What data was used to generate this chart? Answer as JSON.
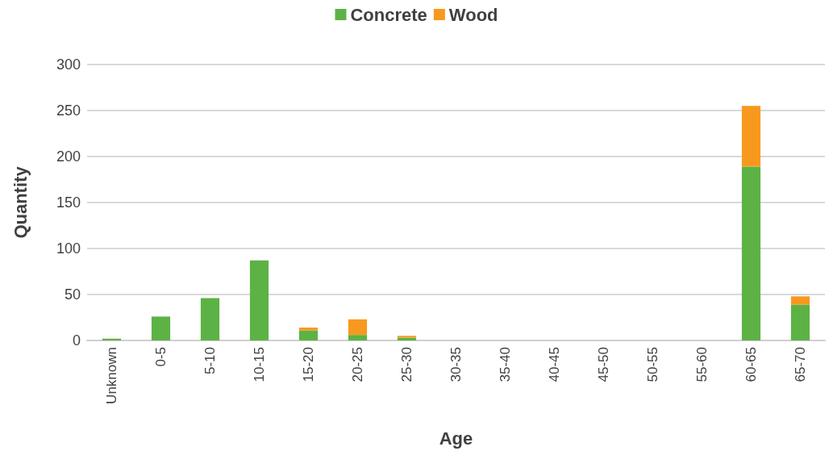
{
  "chart_data": {
    "type": "bar",
    "stacked": true,
    "xlabel": "Age",
    "ylabel": "Quantity",
    "categories": [
      "Unknown",
      "0-5",
      "5-10",
      "10-15",
      "15-20",
      "20-25",
      "25-30",
      "30-35",
      "35-40",
      "40-45",
      "45-50",
      "50-55",
      "55-60",
      "60-65",
      "65-70"
    ],
    "series": [
      {
        "name": "Concrete",
        "color": "#5db245",
        "values": [
          2,
          26,
          46,
          87,
          11,
          6,
          3,
          0,
          0,
          0,
          0,
          0,
          0,
          189,
          39
        ]
      },
      {
        "name": "Wood",
        "color": "#f7991f",
        "values": [
          0,
          0,
          0,
          0,
          3,
          17,
          2,
          0,
          0,
          0,
          0,
          0,
          0,
          66,
          9
        ]
      }
    ],
    "ylim": [
      0,
      300
    ],
    "yticks": [
      0,
      50,
      100,
      150,
      200,
      250,
      300
    ],
    "grid": "y",
    "legend": "top"
  }
}
